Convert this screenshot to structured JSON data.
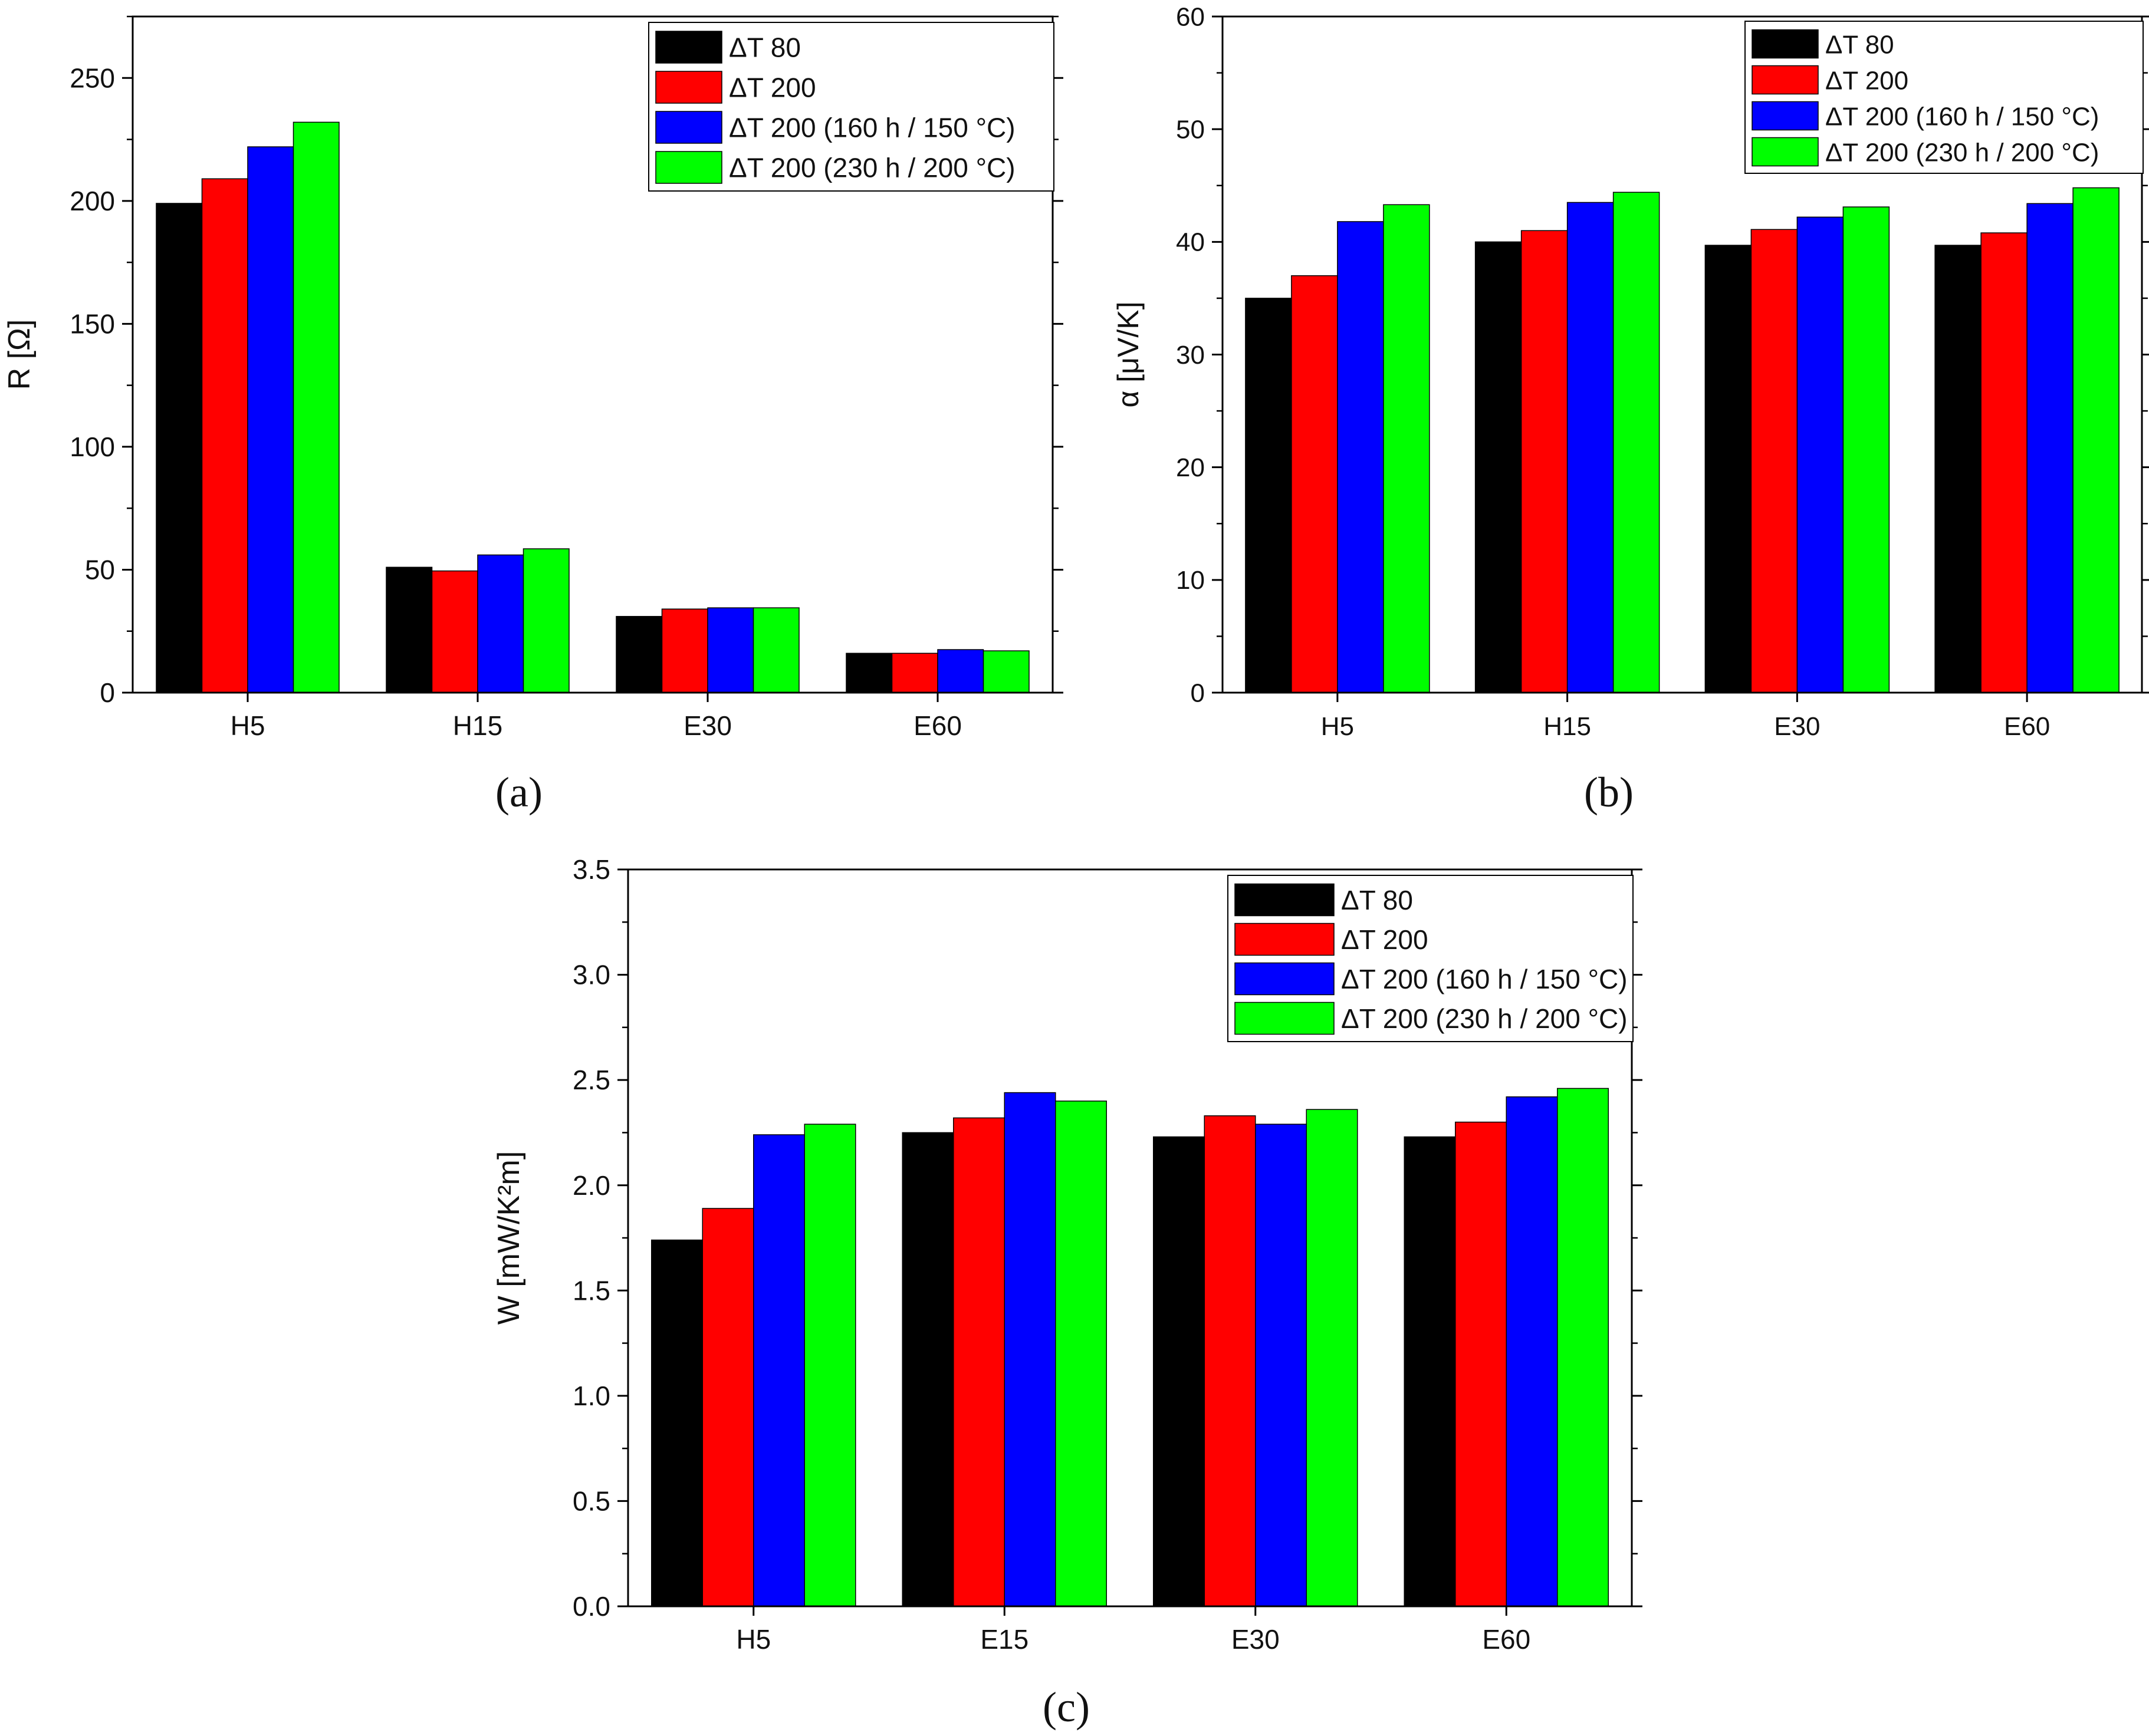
{
  "colors": {
    "dT80": "#000000",
    "dT200": "#ff0000",
    "dT200_160h": "#0000ff",
    "dT200_230h": "#00ff00"
  },
  "legend_labels": [
    "ΔT 80",
    "ΔT 200",
    "ΔT 200 (160 h / 150 °C)",
    "ΔT 200 (230 h / 200 °C)"
  ],
  "chart_data": [
    {
      "type": "bar",
      "panel_label": "(a)",
      "ylabel": "R [Ω]",
      "ylim": [
        0,
        275
      ],
      "yticks": [
        0,
        50,
        100,
        150,
        200,
        250
      ],
      "categories": [
        "H5",
        "H15",
        "E30",
        "E60"
      ],
      "legend_position": "top-right",
      "series": [
        {
          "name": "ΔT 80",
          "color": "#000000",
          "values": [
            199,
            51,
            31,
            16
          ]
        },
        {
          "name": "ΔT 200",
          "color": "#ff0000",
          "values": [
            209,
            49.5,
            34,
            16
          ]
        },
        {
          "name": "ΔT 200 (160 h / 150 °C)",
          "color": "#0000ff",
          "values": [
            222,
            56,
            34.5,
            17.5
          ]
        },
        {
          "name": "ΔT 200 (230 h / 200 °C)",
          "color": "#00ff00",
          "values": [
            232,
            58.5,
            34.5,
            17
          ]
        }
      ]
    },
    {
      "type": "bar",
      "panel_label": "(b)",
      "ylabel": "α [μV/K]",
      "ylim": [
        0,
        60
      ],
      "yticks": [
        0,
        10,
        20,
        30,
        40,
        50,
        60
      ],
      "categories": [
        "H5",
        "H15",
        "E30",
        "E60"
      ],
      "legend_position": "top-right",
      "series": [
        {
          "name": "ΔT 80",
          "color": "#000000",
          "values": [
            35,
            40,
            39.7,
            39.7
          ]
        },
        {
          "name": "ΔT 200",
          "color": "#ff0000",
          "values": [
            37,
            41,
            41.1,
            40.8
          ]
        },
        {
          "name": "ΔT 200 (160 h / 150 °C)",
          "color": "#0000ff",
          "values": [
            41.8,
            43.5,
            42.2,
            43.4
          ]
        },
        {
          "name": "ΔT 200 (230 h / 200 °C)",
          "color": "#00ff00",
          "values": [
            43.3,
            44.4,
            43.1,
            44.8
          ]
        }
      ]
    },
    {
      "type": "bar",
      "panel_label": "(c)",
      "ylabel": "W [mW/K²m]",
      "ylim": [
        0,
        3.5
      ],
      "yticks": [
        0.0,
        0.5,
        1.0,
        1.5,
        2.0,
        2.5,
        3.0,
        3.5
      ],
      "categories": [
        "H5",
        "E15",
        "E30",
        "E60"
      ],
      "legend_position": "top-right",
      "series": [
        {
          "name": "ΔT 80",
          "color": "#000000",
          "values": [
            1.74,
            2.25,
            2.23,
            2.23
          ]
        },
        {
          "name": "ΔT 200",
          "color": "#ff0000",
          "values": [
            1.89,
            2.32,
            2.33,
            2.3
          ]
        },
        {
          "name": "ΔT 200 (160 h / 150 °C)",
          "color": "#0000ff",
          "values": [
            2.24,
            2.44,
            2.29,
            2.42
          ]
        },
        {
          "name": "ΔT 200 (230 h / 200 °C)",
          "color": "#00ff00",
          "values": [
            2.29,
            2.4,
            2.36,
            2.46
          ]
        }
      ]
    }
  ]
}
